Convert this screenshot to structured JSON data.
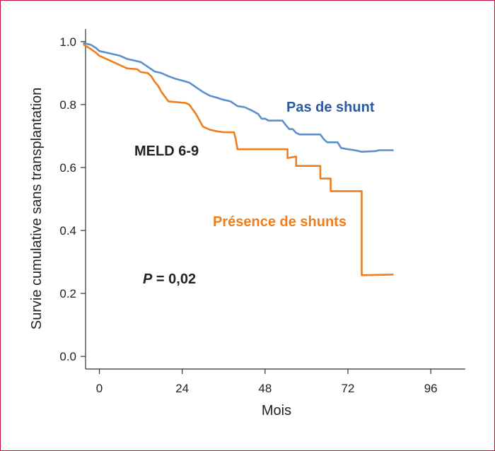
{
  "chart_data": {
    "type": "line",
    "xlabel": "Mois",
    "ylabel": "Survie cumulative sans transplantation",
    "xlim": [
      -4,
      106
    ],
    "ylim": [
      -0.04,
      1.04
    ],
    "xticks": [
      0,
      24,
      48,
      72,
      96
    ],
    "xtick_labels": [
      "0",
      "24",
      "48",
      "72",
      "96"
    ],
    "yticks": [
      0.0,
      0.2,
      0.4,
      0.6,
      0.8,
      1.0
    ],
    "ytick_labels": [
      "0.0",
      "0.2",
      "0.4",
      "0.6",
      "0.8",
      "1.0"
    ],
    "grid": false,
    "colors": {
      "pas_de_shunt": "#5b8fcc",
      "presence_de_shunts": "#ef7d1a",
      "label_pas_de_shunt": "#2a5aa3",
      "label_presence": "#ef7d1a"
    },
    "series": [
      {
        "name": "Pas de shunt",
        "color": "#5b8fcc",
        "points": [
          [
            -4.5,
            0.995
          ],
          [
            -2.5,
            0.99
          ],
          [
            -1,
            0.98
          ],
          [
            0,
            0.97
          ],
          [
            2,
            0.965
          ],
          [
            4,
            0.96
          ],
          [
            6,
            0.955
          ],
          [
            8,
            0.945
          ],
          [
            10,
            0.94
          ],
          [
            12,
            0.935
          ],
          [
            14,
            0.92
          ],
          [
            16,
            0.905
          ],
          [
            18,
            0.9
          ],
          [
            20,
            0.89
          ],
          [
            22,
            0.882
          ],
          [
            24,
            0.876
          ],
          [
            26,
            0.87
          ],
          [
            28,
            0.855
          ],
          [
            30,
            0.84
          ],
          [
            32,
            0.828
          ],
          [
            34,
            0.822
          ],
          [
            36,
            0.815
          ],
          [
            38,
            0.81
          ],
          [
            40,
            0.795
          ],
          [
            42,
            0.792
          ],
          [
            44,
            0.782
          ],
          [
            46,
            0.77
          ],
          [
            47,
            0.755
          ],
          [
            48,
            0.755
          ],
          [
            49,
            0.749
          ],
          [
            53,
            0.749
          ],
          [
            54,
            0.735
          ],
          [
            55,
            0.722
          ],
          [
            56,
            0.722
          ],
          [
            57,
            0.71
          ],
          [
            58,
            0.705
          ],
          [
            64,
            0.705
          ],
          [
            65,
            0.69
          ],
          [
            66,
            0.68
          ],
          [
            69,
            0.68
          ],
          [
            70,
            0.662
          ],
          [
            72,
            0.658
          ],
          [
            74,
            0.655
          ],
          [
            76,
            0.65
          ],
          [
            80,
            0.652
          ],
          [
            81,
            0.655
          ],
          [
            85,
            0.655
          ]
        ]
      },
      {
        "name": "Présence de shunts",
        "color": "#ef7d1a",
        "points": [
          [
            -4.5,
            0.99
          ],
          [
            -3,
            0.98
          ],
          [
            -1,
            0.965
          ],
          [
            0,
            0.955
          ],
          [
            2,
            0.945
          ],
          [
            4,
            0.935
          ],
          [
            6,
            0.925
          ],
          [
            8,
            0.915
          ],
          [
            11,
            0.912
          ],
          [
            12,
            0.903
          ],
          [
            14,
            0.9
          ],
          [
            15,
            0.89
          ],
          [
            16,
            0.873
          ],
          [
            17,
            0.86
          ],
          [
            18,
            0.84
          ],
          [
            19,
            0.825
          ],
          [
            20,
            0.81
          ],
          [
            25,
            0.805
          ],
          [
            26,
            0.8
          ],
          [
            27,
            0.785
          ],
          [
            28,
            0.77
          ],
          [
            29,
            0.75
          ],
          [
            30,
            0.73
          ],
          [
            32,
            0.72
          ],
          [
            34,
            0.715
          ],
          [
            36,
            0.712
          ],
          [
            39,
            0.712
          ],
          [
            39.5,
            0.69
          ],
          [
            40,
            0.658
          ],
          [
            54.5,
            0.658
          ],
          [
            54.5,
            0.63
          ],
          [
            57,
            0.635
          ],
          [
            57,
            0.605
          ],
          [
            64,
            0.605
          ],
          [
            64,
            0.565
          ],
          [
            67,
            0.565
          ],
          [
            67,
            0.525
          ],
          [
            76,
            0.525
          ],
          [
            76,
            0.258
          ],
          [
            85,
            0.26
          ]
        ]
      }
    ],
    "annotations": {
      "meld": "MELD 6-9",
      "p_italic": "P",
      "p_value": " = 0,02",
      "pas_de_shunt": "Pas de shunt",
      "presence": "Présence de shunts"
    }
  }
}
